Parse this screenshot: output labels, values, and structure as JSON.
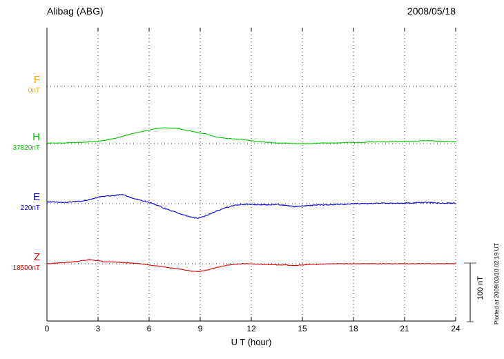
{
  "header": {
    "station": "Alibag (ABG)",
    "date": "2008/05/18"
  },
  "footer_note": "Plotted at 2009/03/10 02:19 UT",
  "chart_data": {
    "type": "line",
    "title": "Alibag (ABG)",
    "subtitle": "2008/05/18",
    "xlabel": "U T (hour)",
    "x_range": [
      0,
      24
    ],
    "x_ticks": [
      0,
      3,
      6,
      9,
      12,
      15,
      18,
      21,
      24
    ],
    "grid": "dotted vertical lines every 3 h; dotted horizontal baseline per channel",
    "legend_position": "left baseline labels",
    "scale_bar": {
      "label": "100 nT",
      "nT": 100
    },
    "series": [
      {
        "label": "F",
        "baseline_label": "0nT",
        "baseline_nT": 0,
        "color": "#FFA500",
        "points": []
      },
      {
        "label": "H",
        "baseline_label": "37820nT",
        "baseline_nT": 37820,
        "color": "#00C800",
        "points": [
          [
            0,
            1
          ],
          [
            0.5,
            1
          ],
          [
            1,
            1
          ],
          [
            1.5,
            2
          ],
          [
            2,
            2
          ],
          [
            2.5,
            3
          ],
          [
            3,
            4
          ],
          [
            3.5,
            6
          ],
          [
            4,
            9
          ],
          [
            4.5,
            13
          ],
          [
            5,
            17
          ],
          [
            5.5,
            20
          ],
          [
            6,
            23
          ],
          [
            6.5,
            26
          ],
          [
            7,
            27
          ],
          [
            7.3,
            26
          ],
          [
            7.6,
            26
          ],
          [
            8,
            24
          ],
          [
            8.5,
            21
          ],
          [
            9,
            18
          ],
          [
            9.3,
            17
          ],
          [
            9.6,
            14
          ],
          [
            10,
            11
          ],
          [
            10.5,
            9
          ],
          [
            11,
            8
          ],
          [
            11.5,
            7
          ],
          [
            12,
            5
          ],
          [
            12.5,
            3
          ],
          [
            13,
            2
          ],
          [
            13.5,
            1
          ],
          [
            14,
            1
          ],
          [
            14.5,
            0
          ],
          [
            15,
            0
          ],
          [
            15.5,
            0
          ],
          [
            16,
            1
          ],
          [
            16.5,
            1
          ],
          [
            17,
            1
          ],
          [
            17.5,
            2
          ],
          [
            18,
            2
          ],
          [
            18.5,
            2
          ],
          [
            19,
            3
          ],
          [
            19.5,
            3
          ],
          [
            20,
            3
          ],
          [
            20.5,
            4
          ],
          [
            21,
            4
          ],
          [
            21.5,
            4
          ],
          [
            22,
            5
          ],
          [
            22.5,
            5
          ],
          [
            23,
            4
          ],
          [
            23.5,
            4
          ],
          [
            24,
            3
          ]
        ]
      },
      {
        "label": "E",
        "baseline_label": "220nT",
        "baseline_nT": 220,
        "color": "#0000DC",
        "points": [
          [
            0,
            3
          ],
          [
            0.5,
            3
          ],
          [
            1,
            2
          ],
          [
            1.5,
            3
          ],
          [
            2,
            4
          ],
          [
            2.5,
            7
          ],
          [
            3,
            11
          ],
          [
            3.5,
            13
          ],
          [
            4,
            14
          ],
          [
            4.3,
            16
          ],
          [
            4.6,
            14
          ],
          [
            5,
            10
          ],
          [
            5.5,
            6
          ],
          [
            6,
            2
          ],
          [
            6.5,
            -3
          ],
          [
            7,
            -9
          ],
          [
            7.5,
            -14
          ],
          [
            8,
            -19
          ],
          [
            8.4,
            -22
          ],
          [
            8.8,
            -25
          ],
          [
            9,
            -24
          ],
          [
            9.3,
            -21
          ],
          [
            9.6,
            -17
          ],
          [
            10,
            -12
          ],
          [
            10.5,
            -7
          ],
          [
            11,
            -3
          ],
          [
            11.5,
            -1
          ],
          [
            12,
            -1
          ],
          [
            12.5,
            -2
          ],
          [
            13,
            -2
          ],
          [
            13.5,
            -1
          ],
          [
            14,
            -3
          ],
          [
            14.5,
            -5
          ],
          [
            15,
            -4
          ],
          [
            15.5,
            -3
          ],
          [
            16,
            -2
          ],
          [
            16.5,
            -2
          ],
          [
            17,
            -1
          ],
          [
            17.5,
            -1
          ],
          [
            18,
            0
          ],
          [
            18.5,
            0
          ],
          [
            19,
            0
          ],
          [
            19.5,
            1
          ],
          [
            20,
            1
          ],
          [
            20.5,
            1
          ],
          [
            21,
            1
          ],
          [
            21.5,
            1
          ],
          [
            22,
            2
          ],
          [
            22.5,
            2
          ],
          [
            23,
            1
          ],
          [
            23.5,
            1
          ],
          [
            24,
            1
          ]
        ]
      },
      {
        "label": "Z",
        "baseline_label": "18500nT",
        "baseline_nT": 18500,
        "color": "#DC0000",
        "points": [
          [
            0,
            0
          ],
          [
            0.5,
            1
          ],
          [
            1,
            2
          ],
          [
            1.5,
            3
          ],
          [
            2,
            5
          ],
          [
            2.5,
            7
          ],
          [
            3,
            5
          ],
          [
            3.5,
            3
          ],
          [
            4,
            3
          ],
          [
            4.5,
            2
          ],
          [
            5,
            1
          ],
          [
            5.5,
            0
          ],
          [
            6,
            -2
          ],
          [
            6.5,
            -4
          ],
          [
            7,
            -6
          ],
          [
            7.5,
            -8
          ],
          [
            8,
            -10
          ],
          [
            8.5,
            -13
          ],
          [
            9,
            -13
          ],
          [
            9.5,
            -10
          ],
          [
            10,
            -6
          ],
          [
            10.5,
            -3
          ],
          [
            11,
            -1
          ],
          [
            11.5,
            0
          ],
          [
            12,
            0
          ],
          [
            12.5,
            -1
          ],
          [
            13,
            -1
          ],
          [
            13.5,
            -2
          ],
          [
            14,
            -2
          ],
          [
            14.5,
            -3
          ],
          [
            15,
            -2
          ],
          [
            15.5,
            -1
          ],
          [
            16,
            -1
          ],
          [
            16.5,
            0
          ],
          [
            17,
            0
          ],
          [
            17.5,
            0
          ],
          [
            18,
            0
          ],
          [
            18.5,
            0
          ],
          [
            19,
            0
          ],
          [
            19.5,
            0
          ],
          [
            20,
            0
          ],
          [
            20.5,
            0
          ],
          [
            21,
            0
          ],
          [
            21.5,
            0
          ],
          [
            22,
            0
          ],
          [
            22.5,
            0
          ],
          [
            23,
            0
          ],
          [
            23.5,
            0
          ],
          [
            24,
            0
          ]
        ]
      }
    ]
  }
}
